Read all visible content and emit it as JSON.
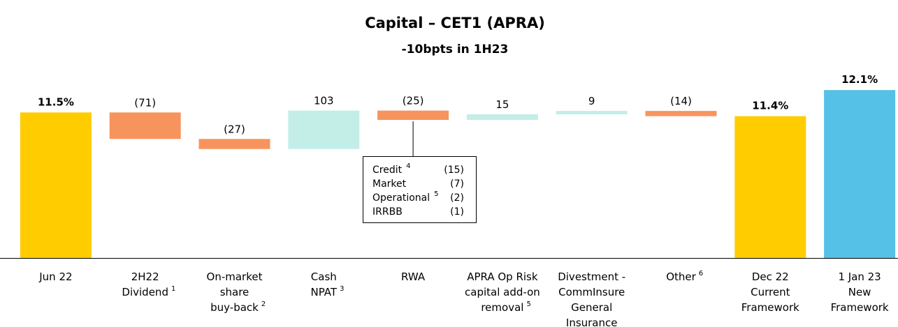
{
  "chart_data": {
    "type": "waterfall",
    "title": "Capital – CET1 (APRA)",
    "subtitle": "-10bpts in 1H23",
    "categories": [
      [
        "Jun 22"
      ],
      [
        "2H22",
        "Dividend"
      ],
      [
        "On-market",
        "share",
        "buy-back"
      ],
      [
        "Cash",
        "NPAT"
      ],
      [
        "RWA"
      ],
      [
        "APRA Op Risk",
        "capital add-on",
        "removal"
      ],
      [
        "Divestment -",
        "CommInsure",
        "General",
        "Insurance"
      ],
      [
        "Other"
      ],
      [
        "Dec 22",
        "Current",
        "Framework"
      ],
      [
        "1 Jan 23",
        "New",
        "Framework"
      ]
    ],
    "footnotes": [
      null,
      "1",
      "2",
      "3",
      null,
      "5",
      null,
      "6",
      null,
      null
    ],
    "measures": [
      "total",
      "relative",
      "relative",
      "relative",
      "relative",
      "relative",
      "relative",
      "relative",
      "total",
      "total"
    ],
    "values": [
      11.5,
      -71,
      -27,
      103,
      -25,
      15,
      9,
      -14,
      11.4,
      12.1
    ],
    "value_labels": [
      "11.5%",
      "(71)",
      "(27)",
      "103",
      "(25)",
      "15",
      "9",
      "(14)",
      "11.4%",
      "12.1%"
    ],
    "colors": [
      "#FFCC00",
      "#F7945D",
      "#F7945D",
      "#C3EEE8",
      "#F7945D",
      "#C3EEE8",
      "#C3EEE8",
      "#F7945D",
      "#FFCC00",
      "#55C1E6"
    ],
    "ylim": [
      7.6,
      13
    ],
    "breakdown": {
      "category": 4,
      "rows": [
        [
          "Credit",
          "4",
          "(15)"
        ],
        [
          "Market",
          null,
          "(7)"
        ],
        [
          "Operational",
          "5",
          "(2)"
        ],
        [
          "IRRBB",
          null,
          "(1)"
        ]
      ]
    }
  }
}
